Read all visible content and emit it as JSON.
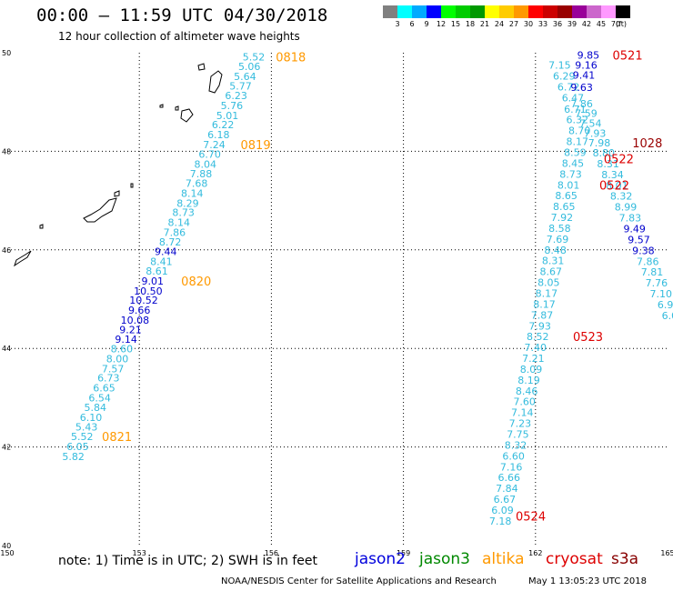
{
  "header": {
    "title": "00:00 – 11:59 UTC 04/30/2018",
    "subtitle": "12 hour collection of altimeter wave heights"
  },
  "colorbar": {
    "unit": "(ft)",
    "bins": [
      {
        "color": "#808080",
        "label": "3"
      },
      {
        "color": "#00ffff",
        "label": "6"
      },
      {
        "color": "#00aaff",
        "label": "9"
      },
      {
        "color": "#0000ff",
        "label": "12"
      },
      {
        "color": "#00ff00",
        "label": "15"
      },
      {
        "color": "#00cc00",
        "label": "18"
      },
      {
        "color": "#009900",
        "label": "21"
      },
      {
        "color": "#ffff00",
        "label": "24"
      },
      {
        "color": "#ffcc00",
        "label": "27"
      },
      {
        "color": "#ff9900",
        "label": "30"
      },
      {
        "color": "#ff0000",
        "label": "33"
      },
      {
        "color": "#cc0000",
        "label": "36"
      },
      {
        "color": "#990000",
        "label": "39"
      },
      {
        "color": "#990099",
        "label": "42"
      },
      {
        "color": "#cc66cc",
        "label": "45"
      },
      {
        "color": "#ff99ff",
        "label": "70"
      },
      {
        "color": "#000000",
        "label": ""
      }
    ]
  },
  "map": {
    "lon_range": [
      150,
      165
    ],
    "lat_range": [
      40,
      50
    ],
    "lon_ticks": [
      "150",
      "153",
      "156",
      "159",
      "162",
      "165"
    ],
    "lat_ticks": [
      "40",
      "42",
      "44",
      "46",
      "48",
      "50"
    ],
    "colors": {
      "light": "#33bbdd",
      "dark": "#0000cc",
      "time_orange": "#ff9900",
      "time_red": "#dd0000",
      "time_darkred": "#990000"
    },
    "track_west": [
      {
        "v": "5.52",
        "c": "light",
        "lon": 155.6,
        "lat": 49.92
      },
      {
        "v": "5.06",
        "c": "light",
        "lon": 155.5,
        "lat": 49.72
      },
      {
        "v": "5.64",
        "c": "light",
        "lon": 155.4,
        "lat": 49.52
      },
      {
        "v": "5.77",
        "c": "light",
        "lon": 155.3,
        "lat": 49.33
      },
      {
        "v": "6.23",
        "c": "light",
        "lon": 155.2,
        "lat": 49.13
      },
      {
        "v": "5.76",
        "c": "light",
        "lon": 155.1,
        "lat": 48.93
      },
      {
        "v": "5.01",
        "c": "light",
        "lon": 155.0,
        "lat": 48.73
      },
      {
        "v": "6.22",
        "c": "light",
        "lon": 154.9,
        "lat": 48.54
      },
      {
        "v": "6.18",
        "c": "light",
        "lon": 154.8,
        "lat": 48.34
      },
      {
        "v": "7.24",
        "c": "light",
        "lon": 154.7,
        "lat": 48.14
      },
      {
        "v": "6.70",
        "c": "light",
        "lon": 154.6,
        "lat": 47.94
      },
      {
        "v": "8.04",
        "c": "light",
        "lon": 154.5,
        "lat": 47.74
      },
      {
        "v": "7.88",
        "c": "light",
        "lon": 154.4,
        "lat": 47.55
      },
      {
        "v": "7.68",
        "c": "light",
        "lon": 154.3,
        "lat": 47.35
      },
      {
        "v": "8.14",
        "c": "light",
        "lon": 154.2,
        "lat": 47.15
      },
      {
        "v": "8.29",
        "c": "light",
        "lon": 154.1,
        "lat": 46.95
      },
      {
        "v": "8.73",
        "c": "light",
        "lon": 154.0,
        "lat": 46.76
      },
      {
        "v": "8.14",
        "c": "light",
        "lon": 153.9,
        "lat": 46.56
      },
      {
        "v": "7.86",
        "c": "light",
        "lon": 153.8,
        "lat": 46.36
      },
      {
        "v": "8.72",
        "c": "light",
        "lon": 153.7,
        "lat": 46.16
      },
      {
        "v": "9.44",
        "c": "dark",
        "lon": 153.6,
        "lat": 45.97
      },
      {
        "v": "8.41",
        "c": "light",
        "lon": 153.5,
        "lat": 45.77
      },
      {
        "v": "8.61",
        "c": "light",
        "lon": 153.4,
        "lat": 45.57
      },
      {
        "v": "9.01",
        "c": "dark",
        "lon": 153.3,
        "lat": 45.37
      },
      {
        "v": "10.50",
        "c": "dark",
        "lon": 153.2,
        "lat": 45.17
      },
      {
        "v": "10.52",
        "c": "dark",
        "lon": 153.1,
        "lat": 44.98
      },
      {
        "v": "9.66",
        "c": "dark",
        "lon": 153.0,
        "lat": 44.78
      },
      {
        "v": "10.08",
        "c": "dark",
        "lon": 152.9,
        "lat": 44.58
      },
      {
        "v": "9.21",
        "c": "dark",
        "lon": 152.8,
        "lat": 44.38
      },
      {
        "v": "9.14",
        "c": "dark",
        "lon": 152.7,
        "lat": 44.19
      },
      {
        "v": "8.60",
        "c": "light",
        "lon": 152.6,
        "lat": 43.99
      },
      {
        "v": "8.00",
        "c": "light",
        "lon": 152.5,
        "lat": 43.79
      },
      {
        "v": "7.57",
        "c": "light",
        "lon": 152.4,
        "lat": 43.59
      },
      {
        "v": "6.73",
        "c": "light",
        "lon": 152.3,
        "lat": 43.4
      },
      {
        "v": "6.65",
        "c": "light",
        "lon": 152.2,
        "lat": 43.2
      },
      {
        "v": "6.54",
        "c": "light",
        "lon": 152.1,
        "lat": 43.0
      },
      {
        "v": "5.84",
        "c": "light",
        "lon": 152.0,
        "lat": 42.8
      },
      {
        "v": "6.10",
        "c": "light",
        "lon": 151.9,
        "lat": 42.6
      },
      {
        "v": "5.43",
        "c": "light",
        "lon": 151.8,
        "lat": 42.41
      },
      {
        "v": "5.52",
        "c": "light",
        "lon": 151.7,
        "lat": 42.21
      },
      {
        "v": "6.05",
        "c": "light",
        "lon": 151.6,
        "lat": 42.01
      },
      {
        "v": "5.82",
        "c": "light",
        "lon": 151.5,
        "lat": 41.81
      }
    ],
    "track_center": [
      {
        "v": "7.15",
        "c": "light",
        "lon": 162.55,
        "lat": 49.75
      },
      {
        "v": "6.29",
        "c": "light",
        "lon": 162.65,
        "lat": 49.53
      },
      {
        "v": "6.72",
        "c": "light",
        "lon": 162.75,
        "lat": 49.31
      },
      {
        "v": "6.47",
        "c": "light",
        "lon": 162.85,
        "lat": 49.09
      },
      {
        "v": "6.71",
        "c": "light",
        "lon": 162.9,
        "lat": 48.86
      },
      {
        "v": "6.32",
        "c": "light",
        "lon": 162.95,
        "lat": 48.64
      },
      {
        "v": "8.70",
        "c": "light",
        "lon": 163.0,
        "lat": 48.42
      },
      {
        "v": "8.17",
        "c": "light",
        "lon": 162.95,
        "lat": 48.2
      },
      {
        "v": "8.59",
        "c": "light",
        "lon": 162.9,
        "lat": 47.98
      },
      {
        "v": "8.45",
        "c": "light",
        "lon": 162.85,
        "lat": 47.76
      },
      {
        "v": "8.73",
        "c": "light",
        "lon": 162.8,
        "lat": 47.54
      },
      {
        "v": "8.01",
        "c": "light",
        "lon": 162.75,
        "lat": 47.32
      },
      {
        "v": "8.65",
        "c": "light",
        "lon": 162.7,
        "lat": 47.1
      },
      {
        "v": "8.65",
        "c": "light",
        "lon": 162.65,
        "lat": 46.88
      },
      {
        "v": "7.92",
        "c": "light",
        "lon": 162.6,
        "lat": 46.66
      },
      {
        "v": "8.58",
        "c": "light",
        "lon": 162.55,
        "lat": 46.44
      },
      {
        "v": "7.69",
        "c": "light",
        "lon": 162.5,
        "lat": 46.22
      },
      {
        "v": "8.48",
        "c": "light",
        "lon": 162.45,
        "lat": 46.0
      },
      {
        "v": "8.31",
        "c": "light",
        "lon": 162.4,
        "lat": 45.78
      },
      {
        "v": "8.67",
        "c": "light",
        "lon": 162.35,
        "lat": 45.56
      },
      {
        "v": "8.05",
        "c": "light",
        "lon": 162.3,
        "lat": 45.34
      },
      {
        "v": "8.17",
        "c": "light",
        "lon": 162.25,
        "lat": 45.12
      },
      {
        "v": "8.17",
        "c": "light",
        "lon": 162.2,
        "lat": 44.9
      },
      {
        "v": "7.87",
        "c": "light",
        "lon": 162.15,
        "lat": 44.68
      },
      {
        "v": "7.93",
        "c": "light",
        "lon": 162.1,
        "lat": 44.46
      },
      {
        "v": "8.52",
        "c": "light",
        "lon": 162.05,
        "lat": 44.24
      },
      {
        "v": "7.40",
        "c": "light",
        "lon": 162.0,
        "lat": 44.02
      },
      {
        "v": "7.21",
        "c": "light",
        "lon": 161.95,
        "lat": 43.8
      },
      {
        "v": "8.09",
        "c": "light",
        "lon": 161.9,
        "lat": 43.58
      },
      {
        "v": "8.19",
        "c": "light",
        "lon": 161.85,
        "lat": 43.36
      },
      {
        "v": "8.46",
        "c": "light",
        "lon": 161.8,
        "lat": 43.14
      },
      {
        "v": "7.60",
        "c": "light",
        "lon": 161.75,
        "lat": 42.92
      },
      {
        "v": "7.14",
        "c": "light",
        "lon": 161.7,
        "lat": 42.7
      },
      {
        "v": "7.23",
        "c": "light",
        "lon": 161.65,
        "lat": 42.48
      },
      {
        "v": "7.75",
        "c": "light",
        "lon": 161.6,
        "lat": 42.26
      },
      {
        "v": "8.32",
        "c": "light",
        "lon": 161.55,
        "lat": 42.04
      },
      {
        "v": "6.60",
        "c": "light",
        "lon": 161.5,
        "lat": 41.82
      },
      {
        "v": "7.16",
        "c": "light",
        "lon": 161.45,
        "lat": 41.6
      },
      {
        "v": "6.66",
        "c": "light",
        "lon": 161.4,
        "lat": 41.38
      },
      {
        "v": "7.84",
        "c": "light",
        "lon": 161.35,
        "lat": 41.16
      },
      {
        "v": "6.67",
        "c": "light",
        "lon": 161.3,
        "lat": 40.94
      },
      {
        "v": "6.09",
        "c": "light",
        "lon": 161.25,
        "lat": 40.72
      },
      {
        "v": "7.18",
        "c": "light",
        "lon": 161.2,
        "lat": 40.5
      }
    ],
    "track_east": [
      {
        "v": "9.85",
        "c": "dark",
        "lon": 163.2,
        "lat": 49.95
      },
      {
        "v": "9.16",
        "c": "dark",
        "lon": 163.15,
        "lat": 49.75
      },
      {
        "v": "9.41",
        "c": "dark",
        "lon": 163.1,
        "lat": 49.55
      },
      {
        "v": "9.63",
        "c": "dark",
        "lon": 163.05,
        "lat": 49.3
      },
      {
        "v": "7.86",
        "c": "light",
        "lon": 163.05,
        "lat": 48.97
      },
      {
        "v": "7.59",
        "c": "light",
        "lon": 163.15,
        "lat": 48.77
      },
      {
        "v": "7.54",
        "c": "light",
        "lon": 163.25,
        "lat": 48.57
      },
      {
        "v": "7.93",
        "c": "light",
        "lon": 163.35,
        "lat": 48.37
      },
      {
        "v": "7.98",
        "c": "light",
        "lon": 163.45,
        "lat": 48.17
      },
      {
        "v": "8.80",
        "c": "light",
        "lon": 163.55,
        "lat": 47.97
      },
      {
        "v": "8.31",
        "c": "light",
        "lon": 163.65,
        "lat": 47.75
      },
      {
        "v": "8.34",
        "c": "light",
        "lon": 163.75,
        "lat": 47.53
      },
      {
        "v": "8.01",
        "c": "light",
        "lon": 163.85,
        "lat": 47.31
      },
      {
        "v": "8.32",
        "c": "light",
        "lon": 163.95,
        "lat": 47.09
      },
      {
        "v": "8.99",
        "c": "light",
        "lon": 164.05,
        "lat": 46.87
      },
      {
        "v": "7.83",
        "c": "light",
        "lon": 164.15,
        "lat": 46.65
      },
      {
        "v": "9.49",
        "c": "dark",
        "lon": 164.25,
        "lat": 46.43
      },
      {
        "v": "9.57",
        "c": "dark",
        "lon": 164.35,
        "lat": 46.21
      },
      {
        "v": "9.38",
        "c": "dark",
        "lon": 164.45,
        "lat": 45.99
      },
      {
        "v": "7.86",
        "c": "light",
        "lon": 164.55,
        "lat": 45.77
      },
      {
        "v": "7.81",
        "c": "light",
        "lon": 164.65,
        "lat": 45.55
      },
      {
        "v": "7.76",
        "c": "light",
        "lon": 164.75,
        "lat": 45.33
      },
      {
        "v": "7.10",
        "c": "light",
        "lon": 164.85,
        "lat": 45.11
      },
      {
        "v": "6.9",
        "c": "light",
        "lon": 164.95,
        "lat": 44.89
      },
      {
        "v": "6.0",
        "c": "light",
        "lon": 165.05,
        "lat": 44.67
      }
    ],
    "times": [
      {
        "t": "0818",
        "c": "time_orange",
        "lon": 156.1,
        "lat": 49.92
      },
      {
        "t": "0819",
        "c": "time_orange",
        "lon": 155.3,
        "lat": 48.14
      },
      {
        "t": "0820",
        "c": "time_orange",
        "lon": 153.95,
        "lat": 45.37
      },
      {
        "t": "0821",
        "c": "time_orange",
        "lon": 152.15,
        "lat": 42.21
      },
      {
        "t": "0521",
        "c": "time_red",
        "lon": 163.75,
        "lat": 49.95
      },
      {
        "t": "1028",
        "c": "time_darkred",
        "lon": 164.2,
        "lat": 48.17
      },
      {
        "t": "0522",
        "c": "time_red",
        "lon": 163.55,
        "lat": 47.85
      },
      {
        "t": "0522",
        "c": "time_red",
        "lon": 163.45,
        "lat": 47.32
      },
      {
        "t": "0523",
        "c": "time_red",
        "lon": 162.85,
        "lat": 44.24
      },
      {
        "t": "0524",
        "c": "time_red",
        "lon": 161.55,
        "lat": 40.6
      }
    ]
  },
  "footer": {
    "note": "note: 1) Time is in UTC; 2) SWH is in feet",
    "legend": [
      {
        "name": "jason2",
        "color": "#0000dd"
      },
      {
        "name": "jason3",
        "color": "#008800"
      },
      {
        "name": "altika",
        "color": "#ff9900"
      },
      {
        "name": "cryosat",
        "color": "#dd0000"
      },
      {
        "name": "s3a",
        "color": "#880000"
      }
    ],
    "credit": "NOAA/NESDIS Center for Satellite Applications and Research",
    "timestamp": "May  1 13:05:23 UTC 2018"
  }
}
